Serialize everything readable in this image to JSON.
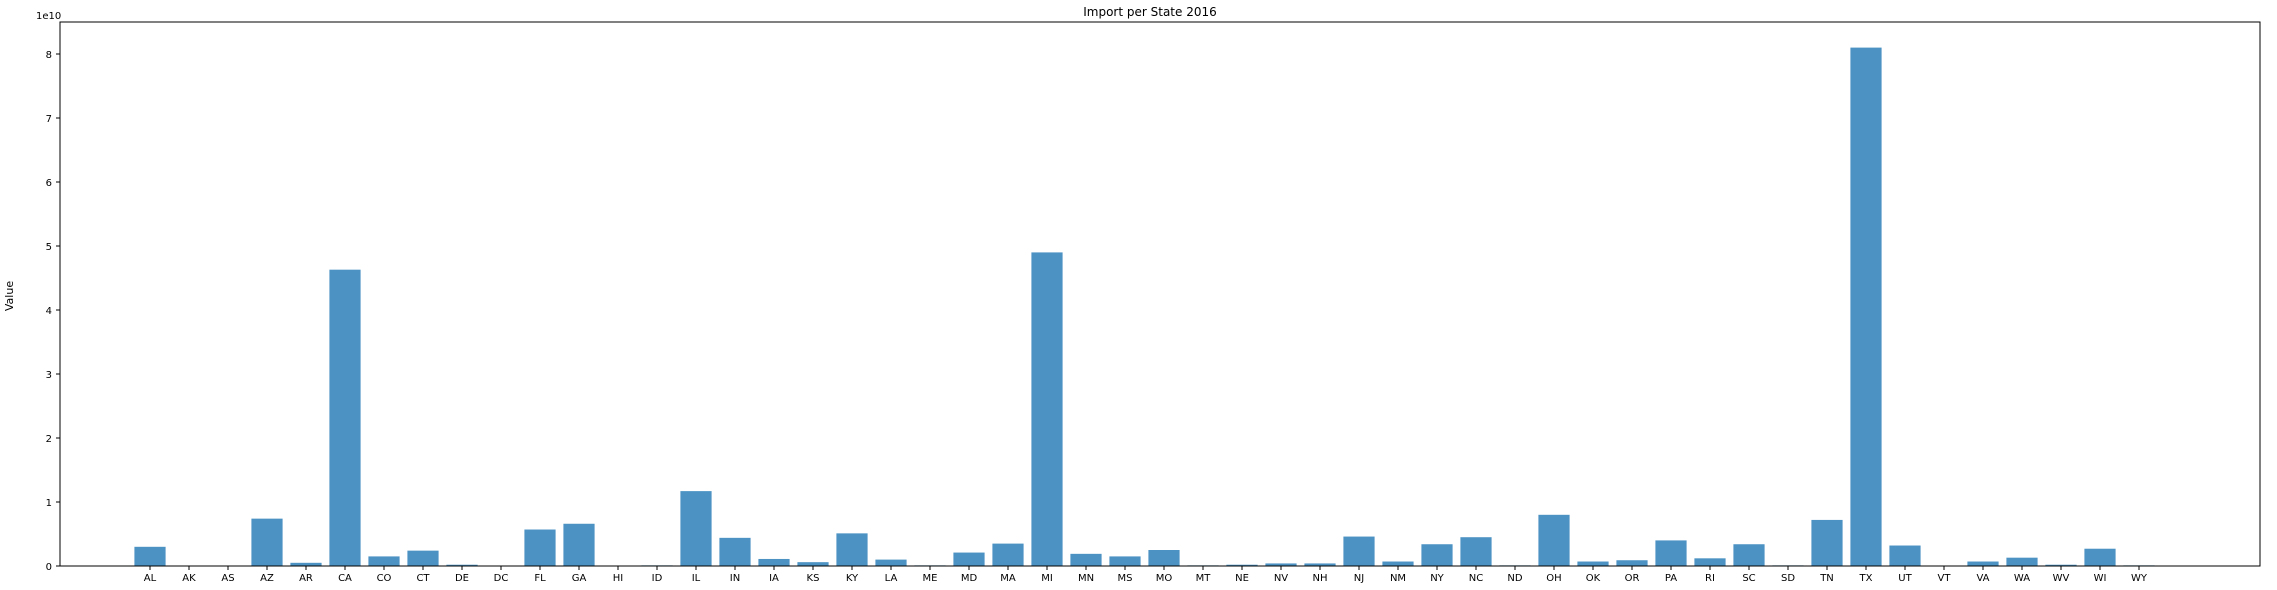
{
  "chart_data": {
    "type": "bar",
    "title": "Import per State 2016",
    "xlabel": "",
    "ylabel": "Value",
    "offset_label": "1e10",
    "ylim": [
      0,
      8.5
    ],
    "yticks": [
      "0",
      "1",
      "2",
      "3",
      "4",
      "5",
      "6",
      "7",
      "8"
    ],
    "bar_color": "#4c93c3",
    "categories": [
      "AL",
      "AK",
      "AS",
      "AZ",
      "AR",
      "CA",
      "CO",
      "CT",
      "DE",
      "DC",
      "FL",
      "GA",
      "HI",
      "ID",
      "IL",
      "IN",
      "IA",
      "KS",
      "KY",
      "LA",
      "ME",
      "MD",
      "MA",
      "MI",
      "MN",
      "MS",
      "MO",
      "MT",
      "NE",
      "NV",
      "NH",
      "NJ",
      "NM",
      "NY",
      "NC",
      "ND",
      "OH",
      "OK",
      "OR",
      "PA",
      "RI",
      "SC",
      "SD",
      "TN",
      "TX",
      "UT",
      "VT",
      "VA",
      "WA",
      "WV",
      "WI",
      "WY"
    ],
    "values": [
      0.3,
      0.0,
      0.0,
      0.74,
      0.05,
      4.63,
      0.15,
      0.24,
      0.02,
      0.0,
      0.57,
      0.66,
      0.0,
      0.01,
      1.17,
      0.44,
      0.11,
      0.06,
      0.51,
      0.1,
      0.01,
      0.21,
      0.35,
      4.9,
      0.19,
      0.15,
      0.25,
      0.01,
      0.02,
      0.04,
      0.04,
      0.46,
      0.07,
      0.34,
      0.45,
      0.01,
      0.8,
      0.07,
      0.09,
      0.4,
      0.12,
      0.34,
      0.01,
      0.72,
      8.1,
      0.32,
      0.0,
      0.07,
      0.13,
      0.02,
      0.27,
      0.01
    ]
  }
}
